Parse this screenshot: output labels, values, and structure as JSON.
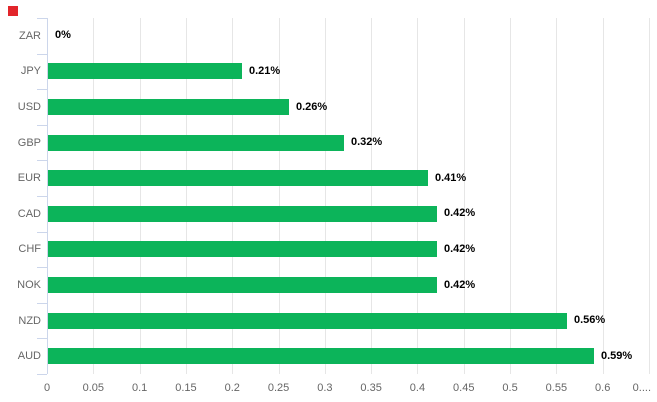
{
  "chart_data": {
    "type": "bar",
    "orientation": "horizontal",
    "title": "",
    "categories": [
      "ZAR",
      "JPY",
      "USD",
      "GBP",
      "EUR",
      "CAD",
      "CHF",
      "NOK",
      "NZD",
      "AUD"
    ],
    "values": [
      0,
      0.21,
      0.26,
      0.32,
      0.41,
      0.42,
      0.42,
      0.42,
      0.56,
      0.59
    ],
    "value_labels": [
      "0%",
      "0.21%",
      "0.26%",
      "0.32%",
      "0.41%",
      "0.42%",
      "0.42%",
      "0.42%",
      "0.56%",
      "0.59%"
    ],
    "x_axis": {
      "min": 0,
      "max": 0.65,
      "tick_interval": 0.05,
      "tick_labels": [
        "0",
        "0.05",
        "0.1",
        "0.15",
        "0.2",
        "0.25",
        "0.3",
        "0.35",
        "0.4",
        "0.45",
        "0.5",
        "0.55",
        "0.6",
        "0...."
      ]
    },
    "grid": true,
    "legend_visible": false
  },
  "colors": {
    "bar": "#0cb45a",
    "grid_line": "#e6e6e6",
    "axis_line": "#ccd6eb",
    "axis_label": "#666666",
    "value_label": "#000000",
    "red_marker": "#e2252b",
    "background": "#ffffff"
  }
}
